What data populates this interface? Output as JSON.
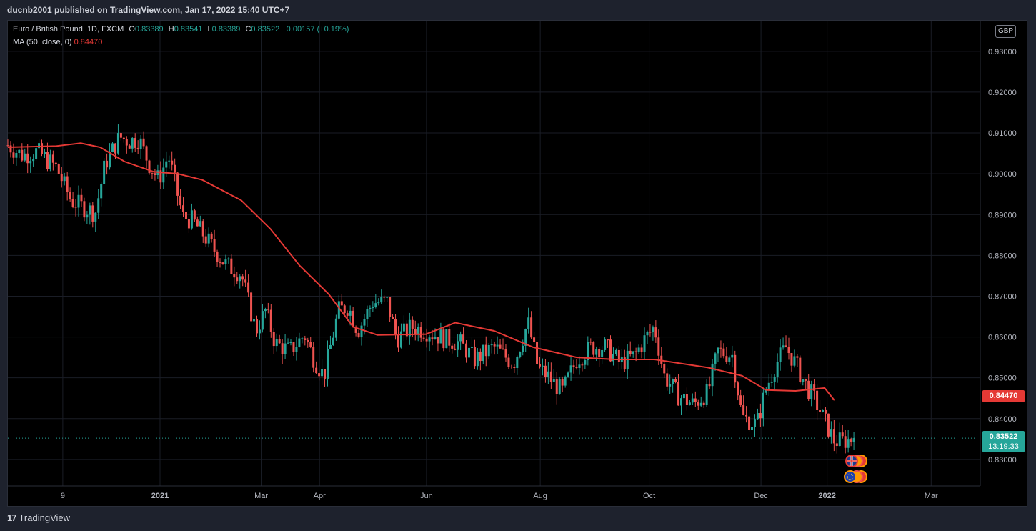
{
  "header": {
    "publisher": "ducnb2001 published on TradingView.com, Jan 17, 2022 15:40 UTC+7"
  },
  "legend": {
    "symbol": "Euro / British Pound, 1D, FXCM",
    "o_label": "O",
    "o": "0.83389",
    "h_label": "H",
    "h": "0.83541",
    "l_label": "L",
    "l": "0.83389",
    "c_label": "C",
    "c": "0.83522",
    "change": "+0.00157 (+0.19%)",
    "ma_label": "MA (50, close, 0)",
    "ma_value": "0.84470"
  },
  "axis": {
    "currency": "GBP"
  },
  "tags": {
    "ma_price": "0.84470",
    "last_price": "0.83522",
    "countdown": "13:19:33"
  },
  "footer": {
    "brand": "TradingView"
  },
  "colors": {
    "up": "#26a69a",
    "down": "#ef5350",
    "ma": "#e53935",
    "grid": "#1a1d26"
  },
  "chart_data": {
    "type": "candlestick",
    "title": "Euro / British Pound, 1D, FXCM",
    "ylim": [
      0.8235,
      0.9375
    ],
    "y_ticks": [
      "0.93000",
      "0.92000",
      "0.91000",
      "0.90000",
      "0.89000",
      "0.88000",
      "0.87000",
      "0.86000",
      "0.85000",
      "0.84000",
      "0.83000"
    ],
    "x_ticks": [
      "9",
      "2021",
      "Mar",
      "Apr",
      "Jun",
      "Aug",
      "Oct",
      "Dec",
      "2022",
      "Mar"
    ],
    "ma_series": [
      {
        "t": 0,
        "y": 0.9065
      },
      {
        "t": 0.05,
        "y": 0.9068
      },
      {
        "t": 0.075,
        "y": 0.9075
      },
      {
        "t": 0.095,
        "y": 0.9065
      },
      {
        "t": 0.12,
        "y": 0.903
      },
      {
        "t": 0.15,
        "y": 0.9005
      },
      {
        "t": 0.175,
        "y": 0.9
      },
      {
        "t": 0.2,
        "y": 0.8985
      },
      {
        "t": 0.24,
        "y": 0.8935
      },
      {
        "t": 0.27,
        "y": 0.8865
      },
      {
        "t": 0.3,
        "y": 0.8775
      },
      {
        "t": 0.33,
        "y": 0.8705
      },
      {
        "t": 0.355,
        "y": 0.8625
      },
      {
        "t": 0.38,
        "y": 0.8605
      },
      {
        "t": 0.43,
        "y": 0.8607
      },
      {
        "t": 0.46,
        "y": 0.8635
      },
      {
        "t": 0.5,
        "y": 0.8615
      },
      {
        "t": 0.54,
        "y": 0.8575
      },
      {
        "t": 0.585,
        "y": 0.855
      },
      {
        "t": 0.625,
        "y": 0.8545
      },
      {
        "t": 0.665,
        "y": 0.8545
      },
      {
        "t": 0.72,
        "y": 0.8525
      },
      {
        "t": 0.755,
        "y": 0.8505
      },
      {
        "t": 0.78,
        "y": 0.847
      },
      {
        "t": 0.81,
        "y": 0.8468
      },
      {
        "t": 0.84,
        "y": 0.8475
      },
      {
        "t": 0.85,
        "y": 0.8445
      }
    ],
    "anchors": [
      {
        "t": 0,
        "y": 0.907
      },
      {
        "t": 0.015,
        "y": 0.9045
      },
      {
        "t": 0.03,
        "y": 0.9055
      },
      {
        "t": 0.05,
        "y": 0.9015
      },
      {
        "t": 0.065,
        "y": 0.8935
      },
      {
        "t": 0.08,
        "y": 0.8915
      },
      {
        "t": 0.09,
        "y": 0.8905
      },
      {
        "t": 0.1,
        "y": 0.9025
      },
      {
        "t": 0.115,
        "y": 0.909
      },
      {
        "t": 0.125,
        "y": 0.908
      },
      {
        "t": 0.135,
        "y": 0.9085
      },
      {
        "t": 0.145,
        "y": 0.9025
      },
      {
        "t": 0.155,
        "y": 0.8985
      },
      {
        "t": 0.165,
        "y": 0.9045
      },
      {
        "t": 0.18,
        "y": 0.8895
      },
      {
        "t": 0.19,
        "y": 0.8885
      },
      {
        "t": 0.2,
        "y": 0.8855
      },
      {
        "t": 0.215,
        "y": 0.8805
      },
      {
        "t": 0.225,
        "y": 0.8775
      },
      {
        "t": 0.24,
        "y": 0.8755
      },
      {
        "t": 0.255,
        "y": 0.8615
      },
      {
        "t": 0.265,
        "y": 0.8665
      },
      {
        "t": 0.275,
        "y": 0.8585
      },
      {
        "t": 0.29,
        "y": 0.8565
      },
      {
        "t": 0.305,
        "y": 0.8605
      },
      {
        "t": 0.315,
        "y": 0.8545
      },
      {
        "t": 0.325,
        "y": 0.8505
      },
      {
        "t": 0.34,
        "y": 0.8665
      },
      {
        "t": 0.35,
        "y": 0.8675
      },
      {
        "t": 0.36,
        "y": 0.8615
      },
      {
        "t": 0.375,
        "y": 0.8685
      },
      {
        "t": 0.39,
        "y": 0.8685
      },
      {
        "t": 0.4,
        "y": 0.8595
      },
      {
        "t": 0.415,
        "y": 0.8625
      },
      {
        "t": 0.43,
        "y": 0.8615
      },
      {
        "t": 0.45,
        "y": 0.8595
      },
      {
        "t": 0.465,
        "y": 0.8585
      },
      {
        "t": 0.48,
        "y": 0.8545
      },
      {
        "t": 0.5,
        "y": 0.8575
      },
      {
        "t": 0.52,
        "y": 0.8535
      },
      {
        "t": 0.535,
        "y": 0.8635
      },
      {
        "t": 0.545,
        "y": 0.8525
      },
      {
        "t": 0.555,
        "y": 0.8505
      },
      {
        "t": 0.57,
        "y": 0.8465
      },
      {
        "t": 0.585,
        "y": 0.8545
      },
      {
        "t": 0.6,
        "y": 0.8575
      },
      {
        "t": 0.615,
        "y": 0.8575
      },
      {
        "t": 0.63,
        "y": 0.8535
      },
      {
        "t": 0.645,
        "y": 0.8555
      },
      {
        "t": 0.655,
        "y": 0.8595
      },
      {
        "t": 0.665,
        "y": 0.8625
      },
      {
        "t": 0.675,
        "y": 0.8505
      },
      {
        "t": 0.69,
        "y": 0.8455
      },
      {
        "t": 0.705,
        "y": 0.8435
      },
      {
        "t": 0.72,
        "y": 0.8465
      },
      {
        "t": 0.73,
        "y": 0.8565
      },
      {
        "t": 0.745,
        "y": 0.8555
      },
      {
        "t": 0.755,
        "y": 0.8405
      },
      {
        "t": 0.77,
        "y": 0.8385
      },
      {
        "t": 0.78,
        "y": 0.8475
      },
      {
        "t": 0.79,
        "y": 0.8535
      },
      {
        "t": 0.8,
        "y": 0.8575
      },
      {
        "t": 0.81,
        "y": 0.8535
      },
      {
        "t": 0.82,
        "y": 0.8485
      },
      {
        "t": 0.83,
        "y": 0.8445
      },
      {
        "t": 0.84,
        "y": 0.8395
      },
      {
        "t": 0.85,
        "y": 0.8345
      },
      {
        "t": 0.86,
        "y": 0.8345
      },
      {
        "t": 0.87,
        "y": 0.8352
      }
    ]
  }
}
